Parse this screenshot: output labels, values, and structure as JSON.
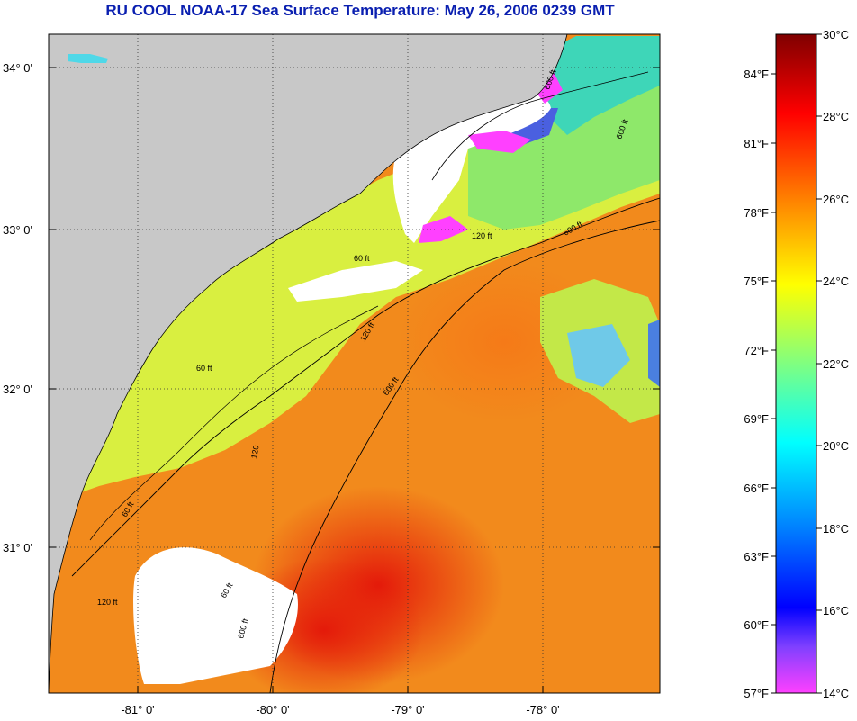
{
  "title": "RU COOL  NOAA-17  Sea Surface Temperature:  May 26, 2006 0239 GMT",
  "lat_labels": [
    "34° 0'",
    "33° 0'",
    "32° 0'",
    "31° 0'"
  ],
  "lon_labels": [
    "-81° 0'",
    "-80° 0'",
    "-79° 0'",
    "-78° 0'"
  ],
  "contour_labels": [
    "120 ft",
    "600 ft",
    "120 ft",
    "600 ft",
    "60 ft",
    "60 ft",
    "120",
    "60 ft",
    "60 ft",
    "120 ft",
    "600 ft",
    "600 ft",
    "600 ft"
  ],
  "colorbar": {
    "celsius": [
      "30°C",
      "28°C",
      "26°C",
      "24°C",
      "22°C",
      "20°C",
      "18°C",
      "16°C",
      "14°C"
    ],
    "fahrenheit": [
      "84°F",
      "81°F",
      "78°F",
      "75°F",
      "72°F",
      "69°F",
      "66°F",
      "63°F",
      "60°F",
      "57°F"
    ],
    "stops": [
      "#7f0000",
      "#ff0000",
      "#ff8000",
      "#ffff00",
      "#80ff80",
      "#00ffff",
      "#0080ff",
      "#0000ff",
      "#8040ff",
      "#ff40ff"
    ]
  },
  "colors": {
    "land": "#c8c8c8",
    "title": "#0a1fb0"
  }
}
